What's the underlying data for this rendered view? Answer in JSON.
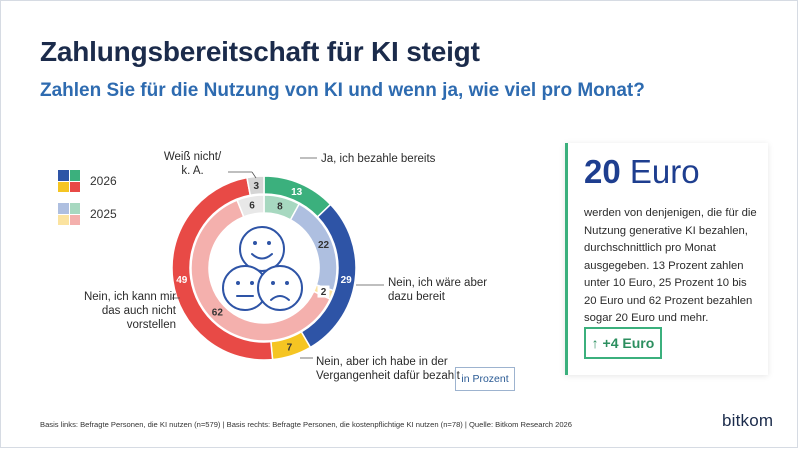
{
  "chart_data": {
    "type": "donut",
    "title": "Zahlungsbereitschaft für KI steigt",
    "subtitle": "Zahlen Sie für die Nutzung von KI und wenn ja, wie viel pro Monat?",
    "unit_label": "in Prozent",
    "categories": [
      "Ja, ich bezahle bereits",
      "Nein, ich wäre aber dazu bereit",
      "Nein, aber ich habe in der Vergangenheit dafür bezahlt",
      "Nein, ich kann mir das auch nicht vorstellen",
      "Weiß nicht/ k. A."
    ],
    "series": [
      {
        "name": "2026",
        "ring": "outer",
        "values": [
          13,
          29,
          7,
          49,
          3
        ],
        "colors": [
          "#3bb07d",
          "#2e54a6",
          "#f5c523",
          "#e84a46",
          "#d5d5d5"
        ]
      },
      {
        "name": "2025",
        "ring": "inner",
        "values": [
          8,
          22,
          2,
          62,
          6
        ],
        "colors": [
          "#a7d8c0",
          "#aebfe0",
          "#fbe3a0",
          "#f4b0ad",
          "#e8e8e8"
        ]
      }
    ],
    "legend_position": "top-left"
  },
  "panel": {
    "big_number": "20",
    "big_unit": "Euro",
    "description": "werden von denjenigen, die für die Nutzung generative KI bezahlen, durchschnittlich pro Monat ausgegeben. 13 Prozent zahlen unter 10 Euro, 25 Prozent 10 bis 20 Euro und 62 Prozent bezahlen sogar 20 Euro und mehr.",
    "delta": "↑ +4 Euro"
  },
  "footnote": "Basis links: Befragte Personen, die KI nutzen (n=579) | Basis rechts: Befragte Personen, die kostenpflichtige KI nutzen (n=78) | Quelle: Bitkom Research 2026",
  "brand": "bitkom"
}
